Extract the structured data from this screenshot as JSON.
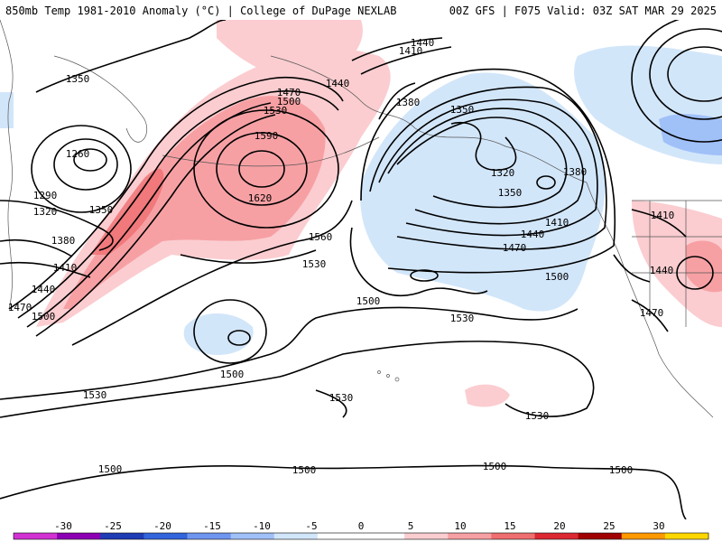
{
  "header": {
    "title_left": "850mb Temp 1981-2010 Anomaly (°C) | College of DuPage NEXLAB",
    "title_right": "00Z GFS | F075 Valid: 03Z SAT MAR 29 2025"
  },
  "contour_labels": [
    {
      "text": "1350"
    },
    {
      "text": "1260"
    },
    {
      "text": "1290"
    },
    {
      "text": "1320"
    },
    {
      "text": "1350"
    },
    {
      "text": "1380"
    },
    {
      "text": "1410"
    },
    {
      "text": "1440"
    },
    {
      "text": "1470"
    },
    {
      "text": "1500"
    },
    {
      "text": "1470"
    },
    {
      "text": "1500"
    },
    {
      "text": "1530"
    },
    {
      "text": "1440"
    },
    {
      "text": "1590"
    },
    {
      "text": "1620"
    },
    {
      "text": "1560"
    },
    {
      "text": "1530"
    },
    {
      "text": "1440"
    },
    {
      "text": "1410"
    },
    {
      "text": "1380"
    },
    {
      "text": "1350"
    },
    {
      "text": "1320"
    },
    {
      "text": "1350"
    },
    {
      "text": "1380"
    },
    {
      "text": "1410"
    },
    {
      "text": "1440"
    },
    {
      "text": "1470"
    },
    {
      "text": "1500"
    },
    {
      "text": "1410"
    },
    {
      "text": "1440"
    },
    {
      "text": "1470"
    },
    {
      "text": "1500"
    },
    {
      "text": "1530"
    },
    {
      "text": "1500"
    },
    {
      "text": "1530"
    },
    {
      "text": "1530"
    },
    {
      "text": "1530"
    },
    {
      "text": "1500"
    },
    {
      "text": "1500"
    },
    {
      "text": "1500"
    },
    {
      "text": "1500"
    }
  ],
  "legend": {
    "ticks": [
      "-30",
      "-25",
      "-20",
      "-15",
      "-10",
      "-5",
      "0",
      "5",
      "10",
      "15",
      "20",
      "25",
      "30"
    ],
    "colors": [
      "#d232d2",
      "#8c00b4",
      "#1e3cb4",
      "#3264dc",
      "#6e96f0",
      "#a0c0f8",
      "#d2e6fa",
      "#ffffff",
      "#ffffff",
      "#fbcdd0",
      "#f7a0a4",
      "#ef6e70",
      "#dc2832",
      "#a00000",
      "#ff9900",
      "#ffd700"
    ]
  }
}
